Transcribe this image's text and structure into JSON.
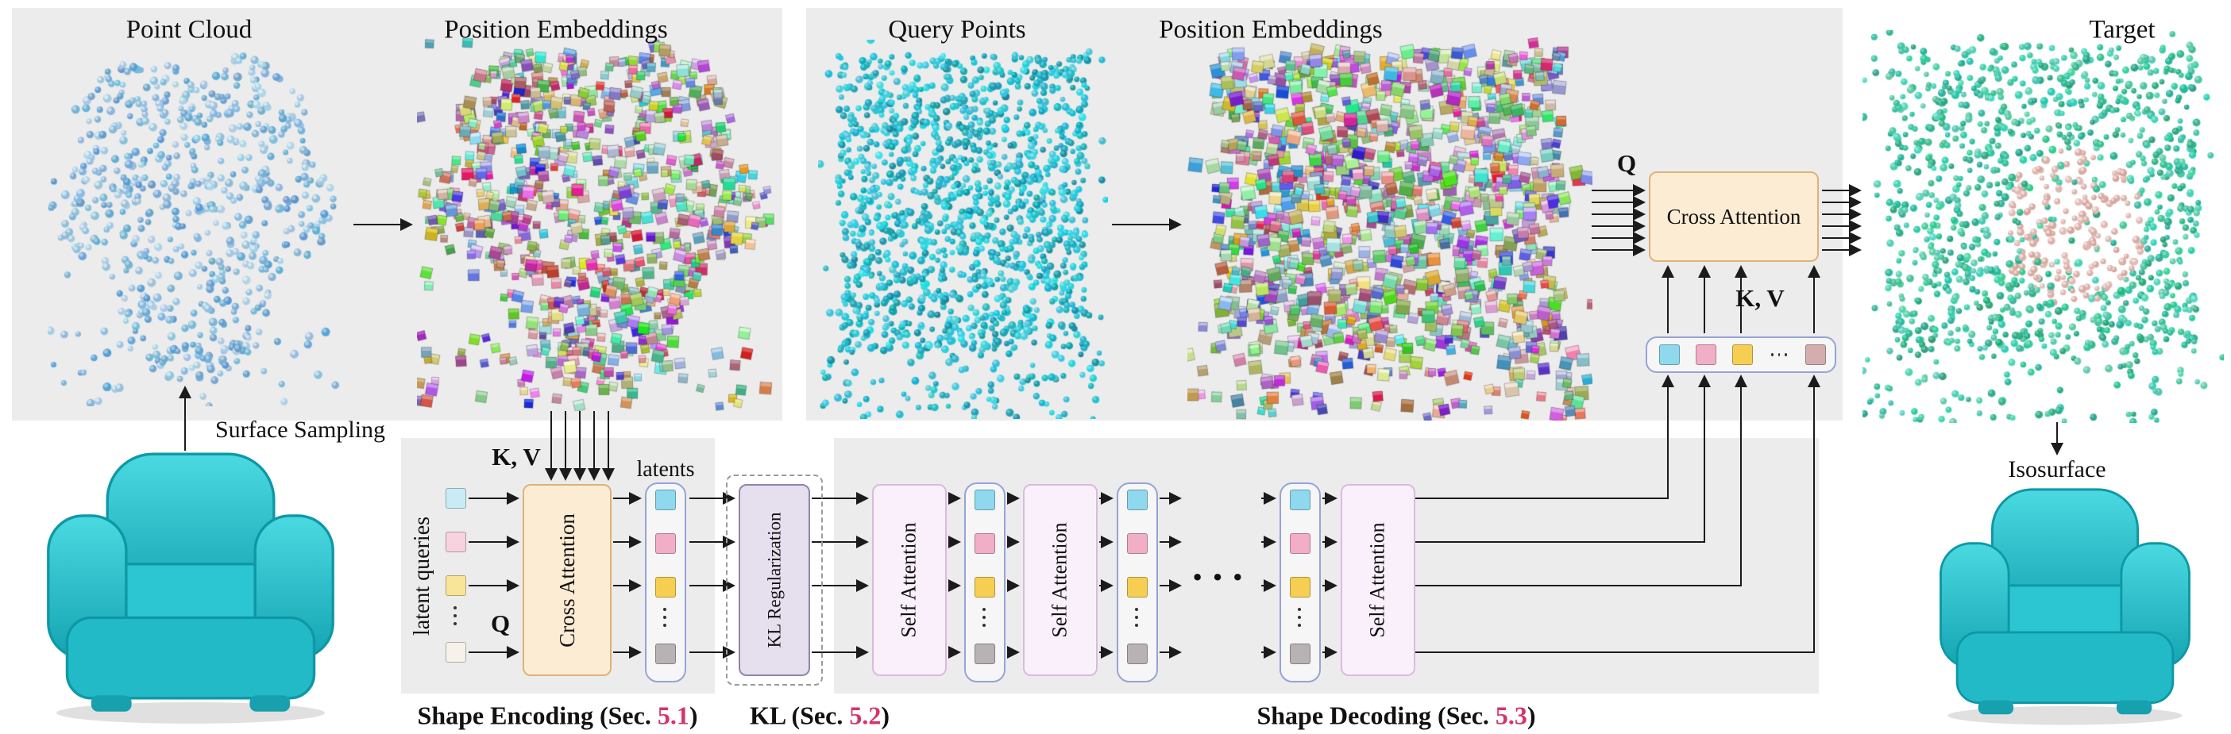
{
  "titles": {
    "point_cloud": "Point Cloud",
    "position_embeddings_enc": "Position Embeddings",
    "query_points": "Query Points",
    "position_embeddings_dec": "Position Embeddings",
    "target": "Target"
  },
  "labels": {
    "surface_sampling": "Surface Sampling",
    "isosurface": "Isosurface",
    "latent_queries": "latent queries",
    "latents": "latents",
    "q_encoder": "Q",
    "kv_encoder": "K, V",
    "q_decoder": "Q",
    "kv_decoder": "K, V",
    "ellipsis": "···"
  },
  "blocks": {
    "cross_attention_enc": "Cross Attention",
    "kl_regularization": "KL Regularization",
    "self_attention_1": "Self Attention",
    "self_attention_2": "Self Attention",
    "self_attention_3": "Self Attention",
    "cross_attention_dec": "Cross Attention"
  },
  "captions": {
    "encoding": {
      "prefix": "Shape Encoding (Sec. ",
      "number": "5.1",
      "suffix": ")"
    },
    "kl": {
      "prefix": "KL (Sec. ",
      "number": "5.2",
      "suffix": ")"
    },
    "decoding": {
      "prefix": "Shape Decoding (Sec. ",
      "number": "5.3",
      "suffix": ")"
    }
  },
  "colors": {
    "panel_bg": "#ececec",
    "section_number": "#d6336c",
    "cross_attention_fill": "#fdecd4",
    "cross_attention_border": "#e0b178",
    "kl_fill": "#e6dfee",
    "kl_border": "#9184ad",
    "self_attention_fill": "#faf0fb",
    "self_attention_border": "#d9bade",
    "column_border": "#96a3d6",
    "arrow": "#1b1b1b",
    "point_cloud_blue": "#a9cbe4",
    "query_teal": "#21aec5",
    "target_green": "#35b79b",
    "target_pink": "#e3b3a6",
    "chair_teal": "#2cc5d2"
  },
  "latent_palettes": {
    "queries": [
      "#c9ebf5",
      "#f7d2df",
      "#f9e59a",
      "dots",
      "#f6f2e9"
    ],
    "latents": [
      "#8fd8ee",
      "#f2aec6",
      "#f6cf52",
      "dots",
      "#b9b2b4"
    ],
    "kv_row": [
      "#8fd8ee",
      "#f2aec6",
      "#f6cf52",
      "dots",
      "#d4aeae"
    ]
  }
}
